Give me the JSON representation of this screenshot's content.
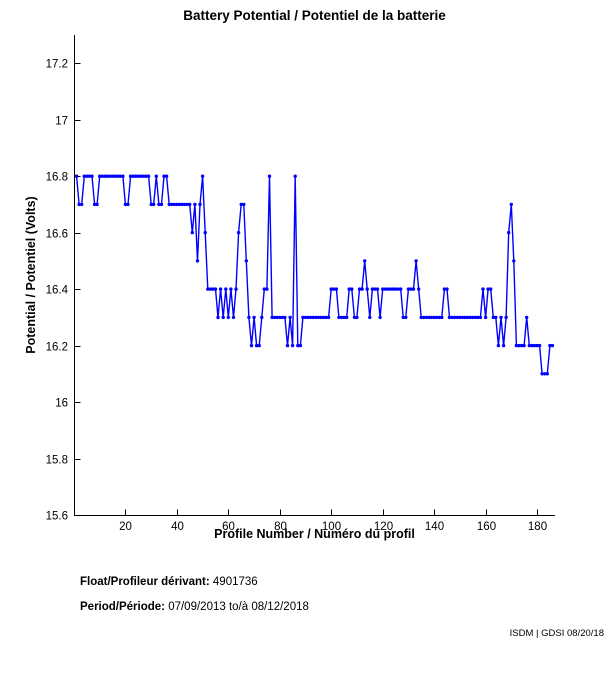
{
  "title": "Battery Potential / Potentiel de la batterie",
  "chart_data": {
    "type": "line",
    "title": "Battery Potential / Potentiel de la batterie",
    "xlabel": "Profile Number / Numéro du profil",
    "ylabel": "Potential / Potentiel (Volts)",
    "xlim": [
      0,
      187
    ],
    "ylim": [
      15.6,
      17.3
    ],
    "x_ticks": [
      20,
      40,
      60,
      80,
      100,
      120,
      140,
      160,
      180
    ],
    "y_ticks": [
      15.6,
      15.8,
      16,
      16.2,
      16.4,
      16.6,
      16.8,
      17,
      17.2
    ],
    "grid": false,
    "legend": "none",
    "line_color": "#0000FF",
    "axis_color": "#000000",
    "marker": "dot",
    "series": [
      {
        "name": "battery-potential-volts",
        "x_start": 1,
        "values": [
          16.8,
          16.7,
          16.7,
          16.8,
          16.8,
          16.8,
          16.8,
          16.7,
          16.7,
          16.8,
          16.8,
          16.8,
          16.8,
          16.8,
          16.8,
          16.8,
          16.8,
          16.8,
          16.8,
          16.7,
          16.7,
          16.8,
          16.8,
          16.8,
          16.8,
          16.8,
          16.8,
          16.8,
          16.8,
          16.7,
          16.7,
          16.8,
          16.7,
          16.7,
          16.8,
          16.8,
          16.7,
          16.7,
          16.7,
          16.7,
          16.7,
          16.7,
          16.7,
          16.7,
          16.7,
          16.6,
          16.7,
          16.5,
          16.7,
          16.8,
          16.6,
          16.4,
          16.4,
          16.4,
          16.4,
          16.3,
          16.4,
          16.3,
          16.4,
          16.3,
          16.4,
          16.3,
          16.4,
          16.6,
          16.7,
          16.7,
          16.5,
          16.3,
          16.2,
          16.3,
          16.2,
          16.2,
          16.3,
          16.4,
          16.4,
          16.8,
          16.3,
          16.3,
          16.3,
          16.3,
          16.3,
          16.3,
          16.2,
          16.3,
          16.2,
          16.8,
          16.2,
          16.2,
          16.3,
          16.3,
          16.3,
          16.3,
          16.3,
          16.3,
          16.3,
          16.3,
          16.3,
          16.3,
          16.3,
          16.4,
          16.4,
          16.4,
          16.3,
          16.3,
          16.3,
          16.3,
          16.4,
          16.4,
          16.3,
          16.3,
          16.4,
          16.4,
          16.5,
          16.4,
          16.3,
          16.4,
          16.4,
          16.4,
          16.3,
          16.4,
          16.4,
          16.4,
          16.4,
          16.4,
          16.4,
          16.4,
          16.4,
          16.3,
          16.3,
          16.4,
          16.4,
          16.4,
          16.5,
          16.4,
          16.3,
          16.3,
          16.3,
          16.3,
          16.3,
          16.3,
          16.3,
          16.3,
          16.3,
          16.4,
          16.4,
          16.3,
          16.3,
          16.3,
          16.3,
          16.3,
          16.3,
          16.3,
          16.3,
          16.3,
          16.3,
          16.3,
          16.3,
          16.3,
          16.4,
          16.3,
          16.4,
          16.4,
          16.3,
          16.3,
          16.2,
          16.3,
          16.2,
          16.3,
          16.6,
          16.7,
          16.5,
          16.2,
          16.2,
          16.2,
          16.2,
          16.3,
          16.2,
          16.2,
          16.2,
          16.2,
          16.2,
          16.1,
          16.1,
          16.1,
          16.2,
          16.2
        ]
      }
    ]
  },
  "footer": {
    "float_label": "Float/Profileur dérivant:",
    "float_value": " 4901736",
    "period_label": "Period/Période:",
    "period_value": " 07/09/2013 to/à  08/12/2018",
    "credit": "ISDM | GDSI 08/20/18"
  }
}
